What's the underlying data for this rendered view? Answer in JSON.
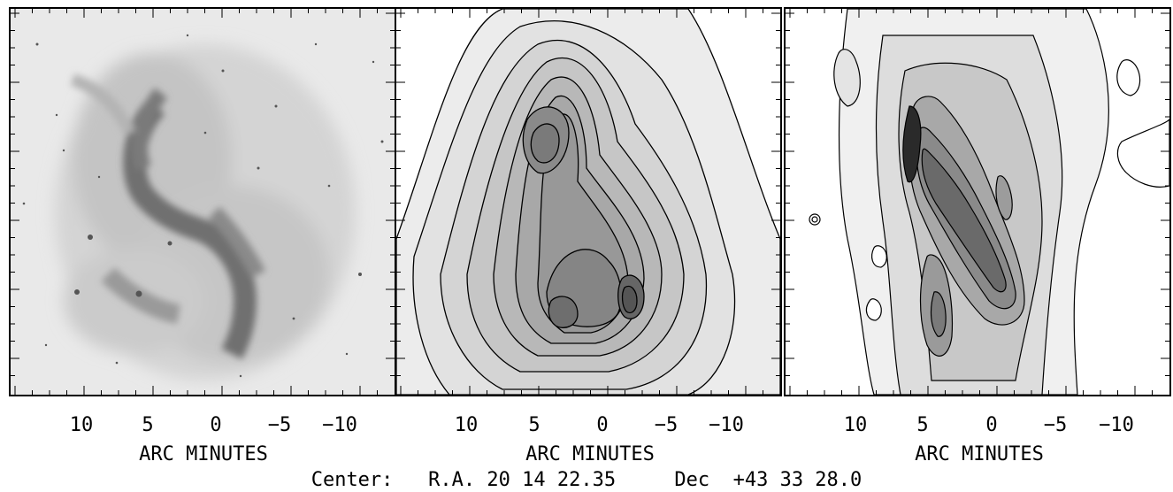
{
  "panels": [
    {
      "id": "optical-image",
      "xticks": [
        "10",
        "5",
        "0",
        "−5",
        "−10"
      ],
      "xlabel": "ARC MINUTES"
    },
    {
      "id": "contour-smooth",
      "xticks": [
        "10",
        "5",
        "0",
        "−5",
        "−10"
      ],
      "xlabel": "ARC MINUTES"
    },
    {
      "id": "contour-detailed",
      "xticks": [
        "10",
        "5",
        "0",
        "−5",
        "−10"
      ],
      "xlabel": "ARC MINUTES"
    }
  ],
  "footer": {
    "center_label": "Center:",
    "ra_label": "R.A.",
    "ra_value": "20 14 22.35",
    "dec_label": "Dec",
    "dec_value": "+43 33 28.0"
  },
  "colors": {
    "ink": "#000000",
    "background": "#ffffff"
  }
}
